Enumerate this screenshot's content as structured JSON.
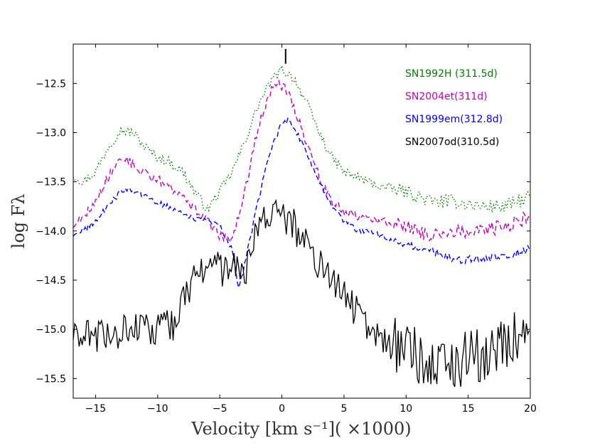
{
  "chart_data": {
    "type": "line",
    "title": "",
    "xlabel": "Velocity [km s⁻¹]( ×1000)",
    "ylabel": "log Fλ",
    "xlim": [
      -16.8,
      20
    ],
    "ylim": [
      -15.7,
      -12.1
    ],
    "xticks": [
      -15,
      -10,
      -5,
      0,
      5,
      10,
      15,
      20
    ],
    "xtick_labels": [
      "−15",
      "−10",
      "−5",
      "0",
      "5",
      "10",
      "15",
      "20"
    ],
    "yticks": [
      -12.5,
      -13.0,
      -13.5,
      -14.0,
      -14.5,
      -15.0,
      -15.5
    ],
    "ytick_labels": [
      "−12.5",
      "−13.0",
      "−13.5",
      "−14.0",
      "−14.5",
      "−15.0",
      "−15.5"
    ],
    "marker": {
      "x": 0.3,
      "y_range": [
        -12.15,
        -12.3
      ]
    },
    "series": [
      {
        "name": "SN1992H (311.5d)",
        "color": "#008000",
        "dash": "dotted",
        "noise": 0.05,
        "points": [
          [
            -16.8,
            -13.43
          ],
          [
            -16,
            -13.5
          ],
          [
            -15,
            -13.4
          ],
          [
            -14,
            -13.15
          ],
          [
            -13,
            -12.97
          ],
          [
            -12,
            -13.0
          ],
          [
            -11,
            -13.15
          ],
          [
            -10,
            -13.25
          ],
          [
            -9,
            -13.3
          ],
          [
            -8,
            -13.4
          ],
          [
            -7,
            -13.6
          ],
          [
            -6,
            -13.78
          ],
          [
            -5,
            -13.6
          ],
          [
            -4,
            -13.4
          ],
          [
            -3,
            -13.1
          ],
          [
            -2,
            -12.75
          ],
          [
            -1,
            -12.5
          ],
          [
            0,
            -12.36
          ],
          [
            1,
            -12.45
          ],
          [
            2,
            -12.7
          ],
          [
            3,
            -13.0
          ],
          [
            4,
            -13.25
          ],
          [
            5,
            -13.4
          ],
          [
            6,
            -13.45
          ],
          [
            8,
            -13.55
          ],
          [
            10,
            -13.6
          ],
          [
            12,
            -13.7
          ],
          [
            14,
            -13.7
          ],
          [
            16,
            -13.75
          ],
          [
            18,
            -13.75
          ],
          [
            20,
            -13.65
          ]
        ]
      },
      {
        "name": "SN2004et(311d)",
        "color": "#bf00bf",
        "dash": "dashed",
        "noise": 0.05,
        "points": [
          [
            -16.8,
            -13.95
          ],
          [
            -16,
            -13.85
          ],
          [
            -15,
            -13.7
          ],
          [
            -14,
            -13.45
          ],
          [
            -13,
            -13.25
          ],
          [
            -12,
            -13.32
          ],
          [
            -11,
            -13.42
          ],
          [
            -10,
            -13.48
          ],
          [
            -9,
            -13.55
          ],
          [
            -8,
            -13.65
          ],
          [
            -7,
            -13.78
          ],
          [
            -6,
            -13.9
          ],
          [
            -5,
            -14.05
          ],
          [
            -4,
            -14.1
          ],
          [
            -3,
            -13.6
          ],
          [
            -2,
            -13.0
          ],
          [
            -1,
            -12.6
          ],
          [
            -0.3,
            -12.5
          ],
          [
            0.5,
            -12.58
          ],
          [
            1,
            -12.75
          ],
          [
            2,
            -13.1
          ],
          [
            3,
            -13.45
          ],
          [
            4,
            -13.7
          ],
          [
            5,
            -13.8
          ],
          [
            6,
            -13.85
          ],
          [
            8,
            -13.9
          ],
          [
            10,
            -13.95
          ],
          [
            12,
            -14.05
          ],
          [
            14,
            -14.0
          ],
          [
            16,
            -14.0
          ],
          [
            18,
            -13.95
          ],
          [
            20,
            -13.85
          ]
        ]
      },
      {
        "name": "SN1999em(312.8d)",
        "color": "#0000ff",
        "dash": "dashed",
        "noise": 0.03,
        "points": [
          [
            -16.8,
            -14.05
          ],
          [
            -16,
            -14.0
          ],
          [
            -15,
            -13.9
          ],
          [
            -14,
            -13.75
          ],
          [
            -13,
            -13.6
          ],
          [
            -12.5,
            -13.57
          ],
          [
            -11,
            -13.65
          ],
          [
            -10,
            -13.72
          ],
          [
            -9,
            -13.75
          ],
          [
            -8,
            -13.82
          ],
          [
            -7,
            -13.88
          ],
          [
            -6,
            -13.9
          ],
          [
            -5,
            -13.95
          ],
          [
            -4,
            -14.2
          ],
          [
            -3.5,
            -14.58
          ],
          [
            -3,
            -14.35
          ],
          [
            -2,
            -13.75
          ],
          [
            -1,
            -13.2
          ],
          [
            0,
            -12.9
          ],
          [
            0.5,
            -12.88
          ],
          [
            1,
            -12.95
          ],
          [
            2,
            -13.2
          ],
          [
            3,
            -13.5
          ],
          [
            4,
            -13.75
          ],
          [
            5,
            -13.9
          ],
          [
            6,
            -13.98
          ],
          [
            8,
            -14.05
          ],
          [
            10,
            -14.15
          ],
          [
            12,
            -14.2
          ],
          [
            14,
            -14.3
          ],
          [
            16,
            -14.28
          ],
          [
            18,
            -14.25
          ],
          [
            20,
            -14.18
          ]
        ]
      },
      {
        "name": "SN2007od(310.5d)",
        "color": "#000000",
        "dash": "solid",
        "noise": 0.18,
        "points": [
          [
            -16.8,
            -15.1
          ],
          [
            -14,
            -15.05
          ],
          [
            -12,
            -15.0
          ],
          [
            -10,
            -15.0
          ],
          [
            -8.5,
            -14.95
          ],
          [
            -8,
            -14.75
          ],
          [
            -7,
            -14.45
          ],
          [
            -6,
            -14.35
          ],
          [
            -5,
            -14.4
          ],
          [
            -4,
            -14.35
          ],
          [
            -3.2,
            -14.45
          ],
          [
            -2.5,
            -14.3
          ],
          [
            -2,
            -14.0
          ],
          [
            -1,
            -13.78
          ],
          [
            0,
            -13.85
          ],
          [
            1,
            -13.95
          ],
          [
            2,
            -14.15
          ],
          [
            3,
            -14.35
          ],
          [
            4,
            -14.5
          ],
          [
            5,
            -14.65
          ],
          [
            6,
            -14.8
          ],
          [
            7,
            -15.0
          ],
          [
            9,
            -15.15
          ],
          [
            12,
            -15.35
          ],
          [
            15,
            -15.3
          ],
          [
            17,
            -15.2
          ],
          [
            20,
            -15.0
          ]
        ]
      }
    ]
  }
}
